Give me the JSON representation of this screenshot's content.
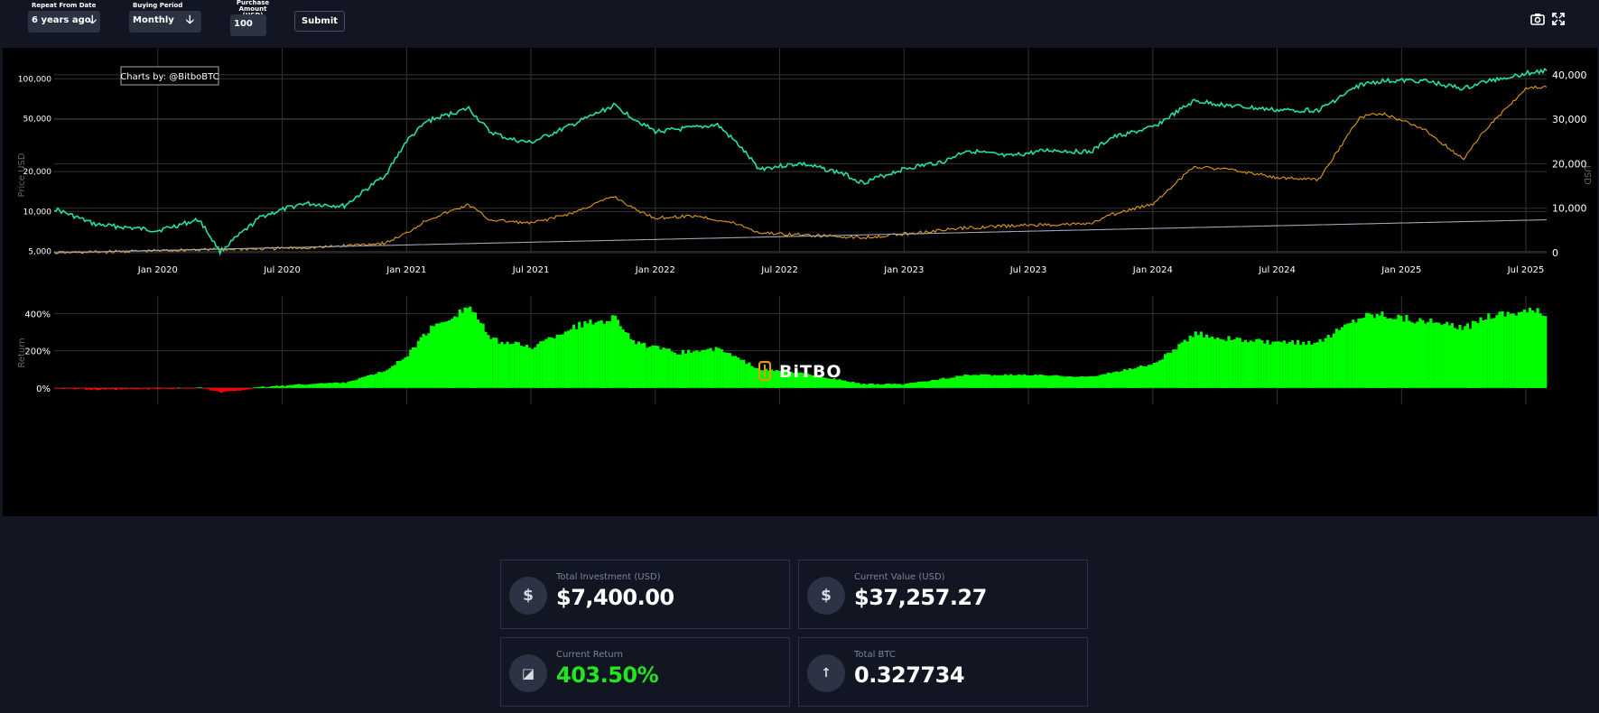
{
  "controls": {
    "repeat_from": {
      "label": "Repeat From Date",
      "value": "6 years ago",
      "arrow": "🡣"
    },
    "buying_period": {
      "label": "Buying Period",
      "value": "Monthly",
      "arrow": "🡣"
    },
    "purchase_amount": {
      "label_line1": "Purchase",
      "label_line2": "Amount (USD)",
      "value": "100"
    },
    "submit_label": "Submit",
    "camera_icon": "camera-icon",
    "expand_icon": "expand-icon"
  },
  "chart_data": [
    {
      "type": "line",
      "annotation": "Charts by: @BitboBTC",
      "ylabel": "Price USD",
      "y2label": "USD",
      "yscale": "log",
      "yticks": [
        "5,000",
        "10,000",
        "20,000",
        "50,000",
        "100,000"
      ],
      "y2ticks": [
        "0",
        "10,000",
        "20,000",
        "30,000",
        "40,000"
      ],
      "xticks": [
        "Jan 2020",
        "Jul 2020",
        "Jan 2021",
        "Jul 2021",
        "Jan 2022",
        "Jul 2022",
        "Jan 2023",
        "Jul 2023",
        "Jan 2024",
        "Jul 2024",
        "Jan 2025",
        "Jul 2025"
      ],
      "series": [
        {
          "color": "#26e0a0",
          "axis": "left",
          "x": [
            "2019-08",
            "2019-10",
            "2020-01",
            "2020-03",
            "2020-04",
            "2020-06",
            "2020-08",
            "2020-10",
            "2020-12",
            "2021-01",
            "2021-02",
            "2021-04",
            "2021-05",
            "2021-06",
            "2021-07",
            "2021-09",
            "2021-11",
            "2021-12",
            "2022-01",
            "2022-03",
            "2022-04",
            "2022-05",
            "2022-06",
            "2022-08",
            "2022-10",
            "2022-11",
            "2023-01",
            "2023-03",
            "2023-04",
            "2023-06",
            "2023-08",
            "2023-10",
            "2023-11",
            "2024-01",
            "2024-03",
            "2024-05",
            "2024-07",
            "2024-09",
            "2024-11",
            "2024-12",
            "2025-02",
            "2025-04",
            "2025-05",
            "2025-07",
            "2025-08"
          ],
          "y": [
            10500,
            8000,
            7200,
            8700,
            5000,
            9200,
            11500,
            11000,
            19000,
            34000,
            48000,
            60000,
            40000,
            35000,
            33000,
            45000,
            63000,
            50000,
            40000,
            43000,
            45000,
            32000,
            21000,
            23000,
            19500,
            16500,
            21000,
            24000,
            29000,
            26000,
            29000,
            28000,
            36000,
            43000,
            68000,
            62000,
            58000,
            58000,
            90000,
            96000,
            97000,
            84000,
            95000,
            110000,
            115000
          ]
        },
        {
          "color": "#e09a18",
          "axis": "right",
          "x": [
            "2019-08",
            "2019-10",
            "2020-01",
            "2020-03",
            "2020-06",
            "2020-09",
            "2020-12",
            "2021-01",
            "2021-02",
            "2021-04",
            "2021-05",
            "2021-07",
            "2021-09",
            "2021-11",
            "2021-12",
            "2022-01",
            "2022-03",
            "2022-05",
            "2022-06",
            "2022-08",
            "2022-11",
            "2023-01",
            "2023-04",
            "2023-07",
            "2023-10",
            "2023-11",
            "2024-01",
            "2024-03",
            "2024-05",
            "2024-07",
            "2024-09",
            "2024-11",
            "2024-12",
            "2025-02",
            "2025-04",
            "2025-05",
            "2025-07",
            "2025-08"
          ],
          "y": [
            0,
            150,
            450,
            700,
            850,
            1250,
            2200,
            4400,
            7400,
            10800,
            7400,
            6600,
            8900,
            12700,
            9800,
            7800,
            8300,
            6400,
            4500,
            4000,
            3400,
            4200,
            5600,
            6200,
            6500,
            8500,
            11000,
            19400,
            18500,
            16900,
            16400,
            30500,
            31400,
            28000,
            21000,
            27500,
            37000,
            37257
          ]
        },
        {
          "color": "#9aa4b8",
          "axis": "right",
          "x": [
            "2019-08",
            "2025-08"
          ],
          "y": [
            0,
            7400
          ]
        }
      ]
    },
    {
      "type": "bar",
      "ylabel": "Return",
      "yticks": [
        "0%",
        "200%",
        "400%"
      ],
      "watermark": "BiTBO",
      "positive_color": "#00ff00",
      "negative_color": "#ff0000",
      "x": [
        "2019-08",
        "2019-10",
        "2020-01",
        "2020-03",
        "2020-04",
        "2020-06",
        "2020-08",
        "2020-10",
        "2020-12",
        "2021-01",
        "2021-02",
        "2021-03",
        "2021-04",
        "2021-05",
        "2021-07",
        "2021-09",
        "2021-11",
        "2021-12",
        "2022-02",
        "2022-04",
        "2022-06",
        "2022-08",
        "2022-11",
        "2023-01",
        "2023-04",
        "2023-07",
        "2023-10",
        "2024-01",
        "2024-03",
        "2024-05",
        "2024-07",
        "2024-09",
        "2024-11",
        "2024-12",
        "2025-03",
        "2025-04",
        "2025-05",
        "2025-07",
        "2025-08"
      ],
      "values": [
        0,
        -10,
        -5,
        2,
        -25,
        5,
        20,
        30,
        95,
        180,
        310,
        380,
        440,
        260,
        220,
        330,
        380,
        240,
        190,
        210,
        100,
        80,
        20,
        20,
        70,
        70,
        60,
        130,
        290,
        260,
        240,
        250,
        390,
        400,
        340,
        320,
        390,
        420,
        403
      ]
    }
  ],
  "stats": [
    {
      "label": "Total Investment (USD)",
      "value": "$7,400.00",
      "icon": "dollar-icon",
      "glyph": "$"
    },
    {
      "label": "Current Value (USD)",
      "value": "$37,257.27",
      "icon": "dollar-icon",
      "glyph": "$"
    },
    {
      "label": "Current Return",
      "value": "403.50%",
      "icon": "chart-icon",
      "glyph": "◪"
    },
    {
      "label": "Total BTC",
      "value": "0.327734",
      "icon": "arrow-up-icon",
      "glyph": "↑"
    }
  ]
}
